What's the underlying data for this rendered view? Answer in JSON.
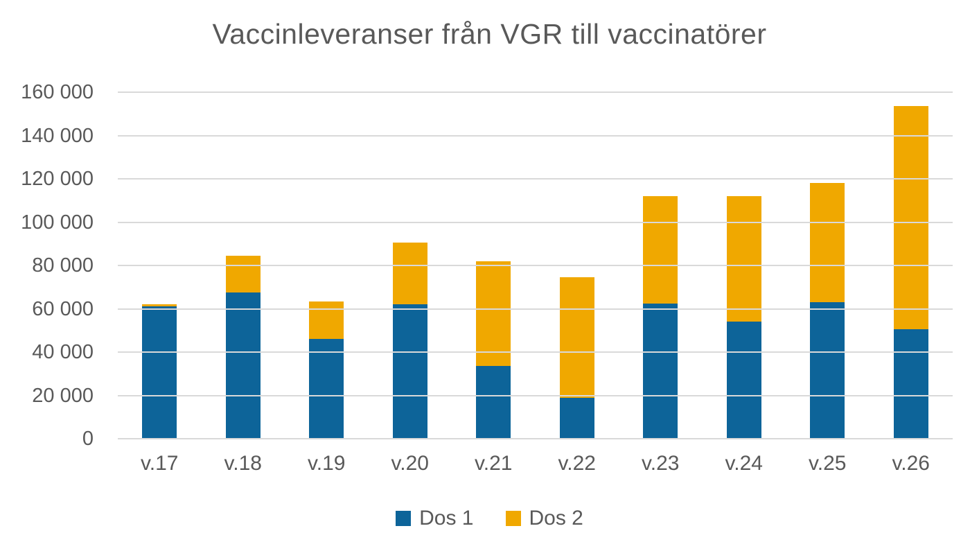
{
  "title": "Vaccinleveranser från VGR till vaccinatörer",
  "colors": {
    "dos1": "#0d6499",
    "dos2": "#f0a800",
    "text": "#595959",
    "gridline": "#d9d9d9"
  },
  "legend": [
    {
      "label": "Dos 1",
      "color": "#0d6499"
    },
    {
      "label": "Dos 2",
      "color": "#f0a800"
    }
  ],
  "chart_data": {
    "type": "bar",
    "stacked": true,
    "title": "Vaccinleveranser från VGR till vaccinatörer",
    "xlabel": "",
    "ylabel": "",
    "categories": [
      "v.17",
      "v.18",
      "v.19",
      "v.20",
      "v.21",
      "v.22",
      "v.23",
      "v.24",
      "v.25",
      "v.26"
    ],
    "series": [
      {
        "name": "Dos 1",
        "color": "#0d6499",
        "values": [
          61000,
          67500,
          46000,
          62000,
          33500,
          19000,
          62500,
          54000,
          63000,
          50500
        ]
      },
      {
        "name": "Dos 2",
        "color": "#f0a800",
        "values": [
          1000,
          17000,
          17500,
          28500,
          48500,
          55500,
          49500,
          58000,
          55000,
          103000
        ]
      }
    ],
    "stack_totals": [
      62000,
      84500,
      63500,
      90500,
      82000,
      74500,
      112000,
      112000,
      118000,
      153500
    ],
    "ylim": [
      0,
      160000
    ],
    "ytick_step": 20000,
    "ytick_labels": [
      "0",
      "20 000",
      "40 000",
      "60 000",
      "80 000",
      "100 000",
      "120 000",
      "140 000",
      "160 000"
    ],
    "grid": true,
    "legend_position": "bottom"
  }
}
